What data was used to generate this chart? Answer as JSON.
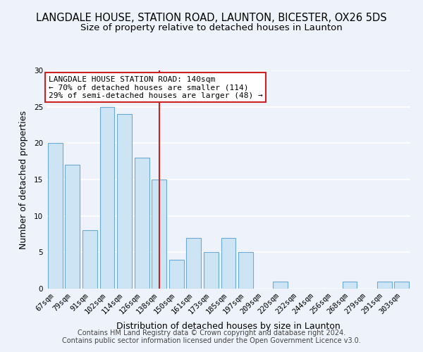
{
  "title": "LANGDALE HOUSE, STATION ROAD, LAUNTON, BICESTER, OX26 5DS",
  "subtitle": "Size of property relative to detached houses in Launton",
  "xlabel": "Distribution of detached houses by size in Launton",
  "ylabel": "Number of detached properties",
  "categories": [
    "67sqm",
    "79sqm",
    "91sqm",
    "102sqm",
    "114sqm",
    "126sqm",
    "138sqm",
    "150sqm",
    "161sqm",
    "173sqm",
    "185sqm",
    "197sqm",
    "209sqm",
    "220sqm",
    "232sqm",
    "244sqm",
    "256sqm",
    "268sqm",
    "279sqm",
    "291sqm",
    "303sqm"
  ],
  "values": [
    20,
    17,
    8,
    25,
    24,
    18,
    15,
    4,
    7,
    5,
    7,
    5,
    0,
    1,
    0,
    0,
    0,
    1,
    0,
    1,
    1
  ],
  "bar_color": "#cde4f4",
  "bar_edge_color": "#6aaad4",
  "vline_x_index": 6,
  "vline_color": "#cc2222",
  "annotation_text": "LANGDALE HOUSE STATION ROAD: 140sqm\n← 70% of detached houses are smaller (114)\n29% of semi-detached houses are larger (48) →",
  "annotation_box_color": "#ffffff",
  "annotation_box_edge": "#cc2222",
  "ylim": [
    0,
    30
  ],
  "yticks": [
    0,
    5,
    10,
    15,
    20,
    25,
    30
  ],
  "footer1": "Contains HM Land Registry data © Crown copyright and database right 2024.",
  "footer2": "Contains public sector information licensed under the Open Government Licence v3.0.",
  "background_color": "#eef2fa",
  "grid_color": "#ffffff",
  "title_fontsize": 10.5,
  "subtitle_fontsize": 9.5,
  "label_fontsize": 9,
  "tick_fontsize": 7.5,
  "annot_fontsize": 8,
  "footer_fontsize": 7
}
